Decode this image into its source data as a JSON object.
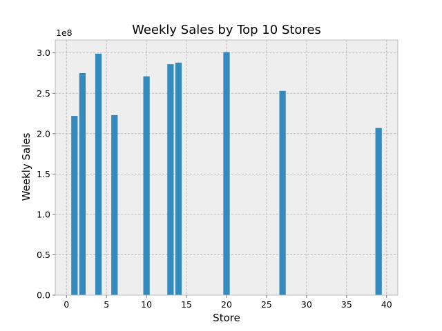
{
  "chart_data": {
    "type": "bar",
    "title": "Weekly Sales by Top 10 Stores",
    "xlabel": "Store",
    "ylabel": "Weekly Sales",
    "y_offset_label": "1e8",
    "x": [
      1,
      2,
      4,
      6,
      10,
      13,
      14,
      20,
      27,
      39
    ],
    "values": [
      2.22,
      2.75,
      2.99,
      2.23,
      2.71,
      2.86,
      2.88,
      3.01,
      2.53,
      2.07
    ],
    "value_scale": 100000000,
    "xlim": [
      -1.4,
      41.4
    ],
    "ylim": [
      0,
      3.16
    ],
    "xticks": [
      0,
      5,
      10,
      15,
      20,
      25,
      30,
      35,
      40
    ],
    "xtick_labels": [
      "0",
      "5",
      "10",
      "15",
      "20",
      "25",
      "30",
      "35",
      "40"
    ],
    "yticks": [
      0,
      0.5,
      1.0,
      1.5,
      2.0,
      2.5,
      3.0
    ],
    "ytick_labels": [
      "0.0",
      "0.5",
      "1.0",
      "1.5",
      "2.0",
      "2.5",
      "3.0"
    ],
    "grid": true,
    "bar_color": "#348ABD",
    "plot_bg": "#EEEEEE",
    "bar_width": 0.8
  }
}
